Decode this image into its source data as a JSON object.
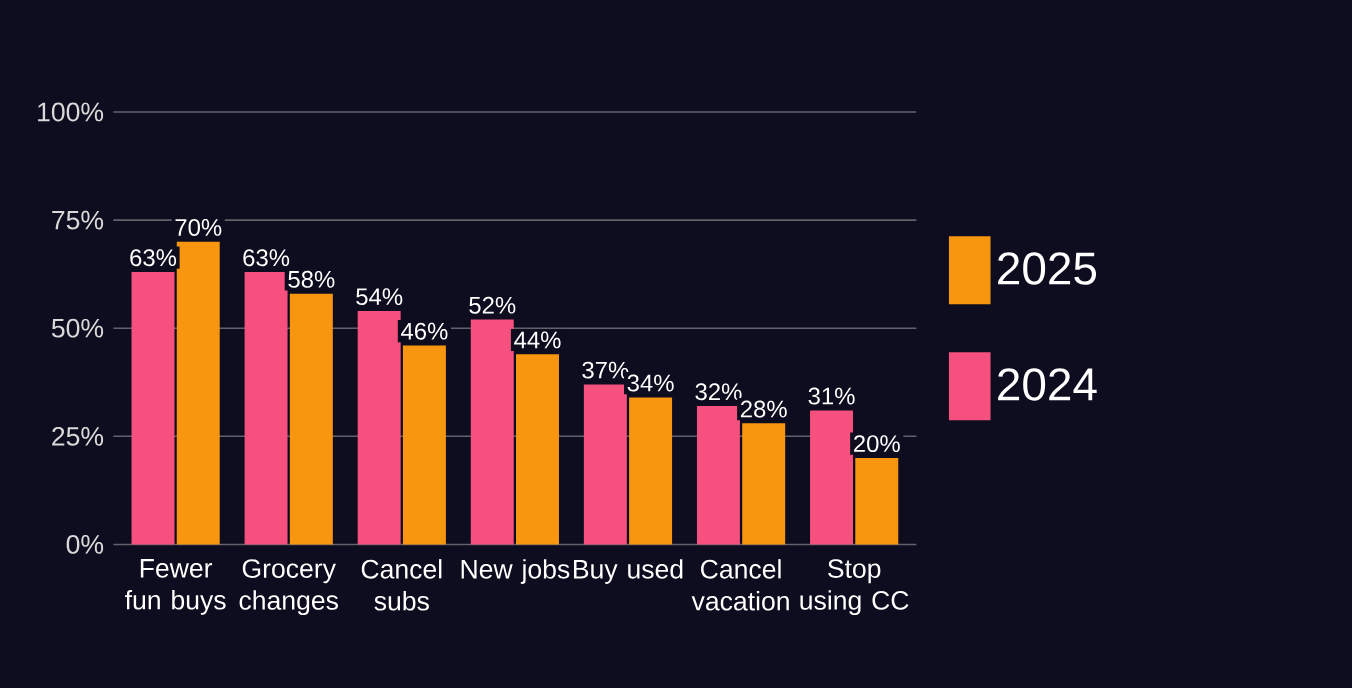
{
  "chart_data": {
    "type": "bar",
    "categories": [
      "Fewer fun buys",
      "Grocery changes",
      "Cancel subs",
      "New jobs",
      "Buy used",
      "Cancel vacation",
      "Stop using CC"
    ],
    "series": [
      {
        "name": "2024",
        "color": "#f5507e",
        "values": [
          63,
          63,
          54,
          52,
          37,
          32,
          31
        ],
        "value_labels": [
          "63%",
          "63%",
          "54%",
          "52%",
          "37%",
          "32%",
          "31%"
        ]
      },
      {
        "name": "2025",
        "color": "#f8960f",
        "values": [
          70,
          58,
          46,
          44,
          34,
          28,
          20
        ],
        "value_labels": [
          "70%",
          "58%",
          "46%",
          "44%",
          "34%",
          "28%",
          "20%"
        ]
      }
    ],
    "ylim": [
      0,
      100
    ],
    "yticks": [
      {
        "value": 0,
        "label": "0%"
      },
      {
        "value": 25,
        "label": "25%"
      },
      {
        "value": 50,
        "label": "50%"
      },
      {
        "value": 75,
        "label": "75%"
      },
      {
        "value": 100,
        "label": "100%"
      }
    ],
    "grid": "y",
    "legend": "right"
  }
}
